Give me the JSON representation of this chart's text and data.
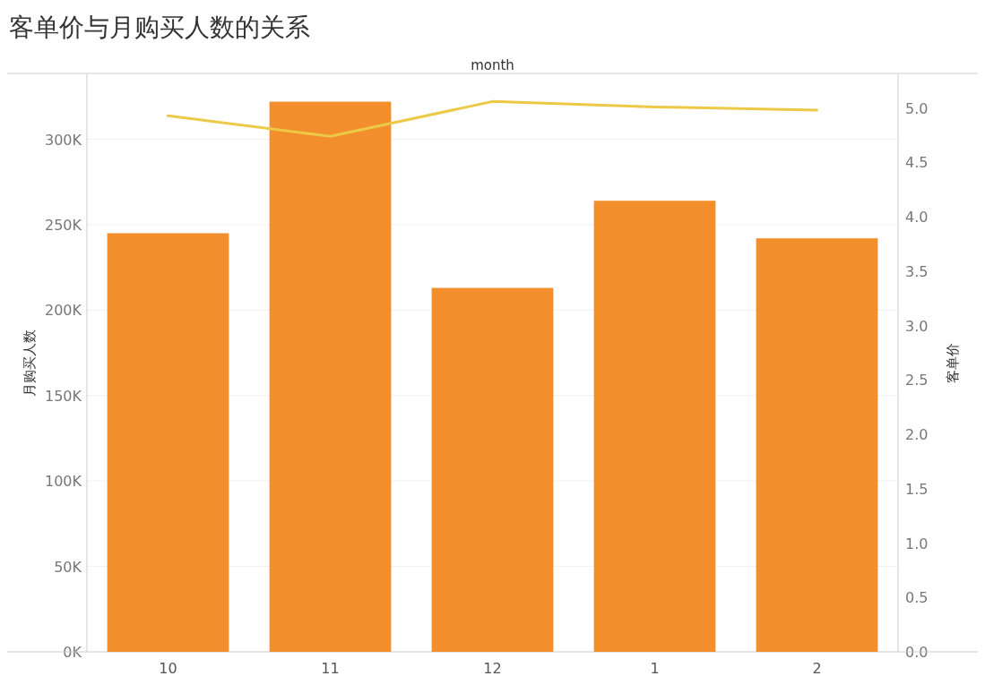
{
  "chart_data": {
    "type": "bar",
    "title": "客单价与月购买人数的关系",
    "xlabel": "month",
    "ylabel": "月购买人数",
    "y2label": "客单价",
    "categories": [
      "10",
      "11",
      "12",
      "1",
      "2"
    ],
    "series": [
      {
        "color": "#f28e2b",
        "values": [
          245000,
          322000,
          213000,
          264000,
          242000
        ]
      },
      {
        "type": "line",
        "axis": "y2",
        "color": "#edc948",
        "values": [
          4.93,
          4.74,
          5.06,
          5.01,
          4.98
        ]
      }
    ],
    "ylim": [
      0,
      338000
    ],
    "yticks": [
      {
        "value": 0,
        "label": "0K"
      },
      {
        "value": 50000,
        "label": "50K"
      },
      {
        "value": 100000,
        "label": "100K"
      },
      {
        "value": 150000,
        "label": "150K"
      },
      {
        "value": 200000,
        "label": "200K"
      },
      {
        "value": 250000,
        "label": "250K"
      },
      {
        "value": 300000,
        "label": "300K"
      }
    ],
    "y2lim": [
      0,
      5.31
    ],
    "y2ticks": [
      {
        "value": 0,
        "label": "0.0"
      },
      {
        "value": 0.5,
        "label": "0.5"
      },
      {
        "value": 1,
        "label": "1.0"
      },
      {
        "value": 1.5,
        "label": "1.5"
      },
      {
        "value": 2,
        "label": "2.0"
      },
      {
        "value": 2.5,
        "label": "2.5"
      },
      {
        "value": 3,
        "label": "3.0"
      },
      {
        "value": 3.5,
        "label": "3.5"
      },
      {
        "value": 4,
        "label": "4.0"
      },
      {
        "value": 4.5,
        "label": "4.5"
      },
      {
        "value": 5,
        "label": "5.0"
      }
    ],
    "grid": "y"
  }
}
